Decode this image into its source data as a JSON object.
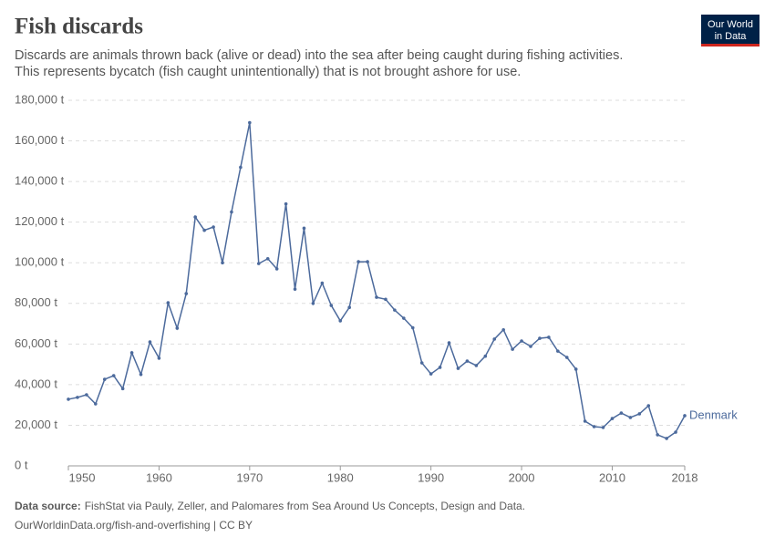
{
  "header": {
    "title": "Fish discards",
    "subtitle": [
      "Discards are animals thrown back (alive or dead) into the sea after being caught during fishing activities.",
      "This represents bycatch (fish caught unintentionally) that is not brought ashore for use."
    ],
    "logo": [
      "Our World",
      "in Data"
    ]
  },
  "chart_data": {
    "type": "line",
    "x": [
      1950,
      1951,
      1952,
      1953,
      1954,
      1955,
      1956,
      1957,
      1958,
      1959,
      1960,
      1961,
      1962,
      1963,
      1964,
      1965,
      1966,
      1967,
      1968,
      1969,
      1970,
      1971,
      1972,
      1973,
      1974,
      1975,
      1976,
      1977,
      1978,
      1979,
      1980,
      1981,
      1982,
      1983,
      1984,
      1985,
      1986,
      1987,
      1988,
      1989,
      1990,
      1991,
      1992,
      1993,
      1994,
      1995,
      1996,
      1997,
      1998,
      1999,
      2000,
      2001,
      2002,
      2003,
      2004,
      2005,
      2006,
      2007,
      2008,
      2009,
      2010,
      2011,
      2012,
      2013,
      2014,
      2015,
      2016,
      2017,
      2018
    ],
    "series": [
      {
        "name": "Denmark",
        "color": "#4c6a9c",
        "values": [
          32800,
          33700,
          35000,
          30500,
          42600,
          44400,
          38000,
          55700,
          45000,
          61000,
          53000,
          80300,
          67800,
          84800,
          122500,
          116000,
          117600,
          100000,
          125000,
          147000,
          169000,
          99600,
          102000,
          97000,
          129000,
          87000,
          117000,
          80000,
          90000,
          79000,
          71400,
          78000,
          100500,
          100500,
          83000,
          82000,
          76700,
          72700,
          68000,
          50700,
          45300,
          48500,
          60600,
          48000,
          51600,
          49400,
          54000,
          62400,
          67000,
          57400,
          61500,
          58800,
          62800,
          63300,
          56500,
          53400,
          47600,
          22000,
          19300,
          18900,
          23300,
          26000,
          23800,
          25600,
          29600,
          15300,
          13500,
          16600,
          24700
        ]
      }
    ],
    "xlim": [
      1950,
      2018
    ],
    "xticks": [
      1950,
      1960,
      1970,
      1980,
      1990,
      2000,
      2010,
      2018
    ],
    "ylim": [
      0,
      180000
    ],
    "yticks": [
      {
        "value": 0,
        "label": "0 t"
      },
      {
        "value": 20000,
        "label": "20,000 t"
      },
      {
        "value": 40000,
        "label": "40,000 t"
      },
      {
        "value": 60000,
        "label": "60,000 t"
      },
      {
        "value": 80000,
        "label": "80,000 t"
      },
      {
        "value": 100000,
        "label": "100,000 t"
      },
      {
        "value": 120000,
        "label": "120,000 t"
      },
      {
        "value": 140000,
        "label": "140,000 t"
      },
      {
        "value": 160000,
        "label": "160,000 t"
      },
      {
        "value": 180000,
        "label": "180,000 t"
      }
    ],
    "grid": true
  },
  "footer": {
    "source_label": "Data source:",
    "source": "FishStat via Pauly, Zeller, and Palomares from Sea Around Us Concepts, Design and Data.",
    "url": "OurWorldinData.org/fish-and-overfishing | CC BY"
  }
}
